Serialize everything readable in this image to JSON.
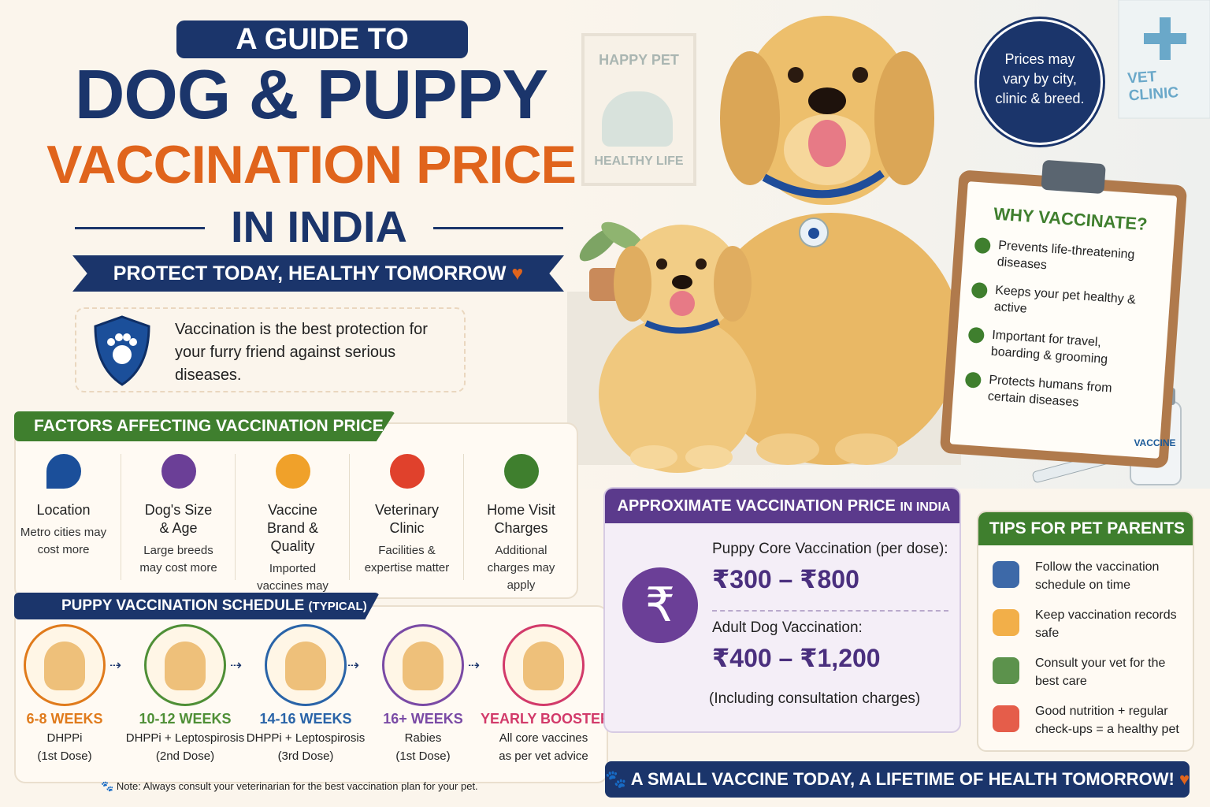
{
  "header": {
    "kicker": "A GUIDE TO",
    "line1": "DOG & PUPPY",
    "line2": "VACCINATION PRICE",
    "line3": "IN INDIA",
    "tagline": "PROTECT TODAY, HEALTHY TOMORROW"
  },
  "intro": "Vaccination is the best protection for your furry friend against serious diseases.",
  "poster": {
    "top": "HAPPY PET",
    "bottom": "HEALTHY LIFE"
  },
  "badge": "Prices may vary by city, clinic & breed.",
  "vet_sign": "VET CLINIC",
  "why": {
    "title": "WHY VACCINATE?",
    "items": [
      "Prevents life-threatening diseases",
      "Keeps your pet healthy & active",
      "Important for travel, boarding & grooming",
      "Protects humans from certain diseases"
    ]
  },
  "vial": "VACCINE",
  "factors": {
    "title": "FACTORS AFFECTING VACCINATION PRICE",
    "items": [
      {
        "name": "Location",
        "note": "Metro cities may cost more"
      },
      {
        "name": "Dog's Size & Age",
        "note": "Large breeds may cost more"
      },
      {
        "name": "Vaccine Brand & Quality",
        "note": "Imported vaccines may be costlier"
      },
      {
        "name": "Veterinary Clinic",
        "note": "Facilities & expertise matter"
      },
      {
        "name": "Home Visit Charges",
        "note": "Additional charges may apply"
      }
    ]
  },
  "schedule": {
    "title": "PUPPY VACCINATION SCHEDULE",
    "qualifier": "(TYPICAL)",
    "steps": [
      {
        "age": "6-8 WEEKS",
        "vaccine": "DHPPi",
        "dose": "(1st Dose)"
      },
      {
        "age": "10-12 WEEKS",
        "vaccine": "DHPPi + Leptospirosis",
        "dose": "(2nd Dose)"
      },
      {
        "age": "14-16 WEEKS",
        "vaccine": "DHPPi + Leptospirosis",
        "dose": "(3rd Dose)"
      },
      {
        "age": "16+ WEEKS",
        "vaccine": "Rabies",
        "dose": "(1st Dose)"
      },
      {
        "age": "YEARLY BOOSTER",
        "vaccine": "All core vaccines",
        "dose": "as per vet advice"
      }
    ],
    "note": "Note: Always consult your veterinarian for the best vaccination plan for your pet."
  },
  "prices": {
    "title": "APPROXIMATE VACCINATION PRICE",
    "title_suffix": "IN INDIA",
    "items": [
      {
        "label": "Puppy Core Vaccination (per dose):",
        "range": "₹300 – ₹800"
      },
      {
        "label": "Adult Dog Vaccination:",
        "range": "₹400 – ₹1,200"
      }
    ],
    "footnote": "(Including consultation charges)"
  },
  "tips": {
    "title": "TIPS FOR PET PARENTS",
    "items": [
      "Follow the vaccination schedule on time",
      "Keep vaccination records safe",
      "Consult your vet for the best care",
      "Good nutrition + regular check-ups = a healthy pet"
    ]
  },
  "footer": "A SMALL VACCINE TODAY, A LIFETIME OF HEALTH TOMORROW!"
}
